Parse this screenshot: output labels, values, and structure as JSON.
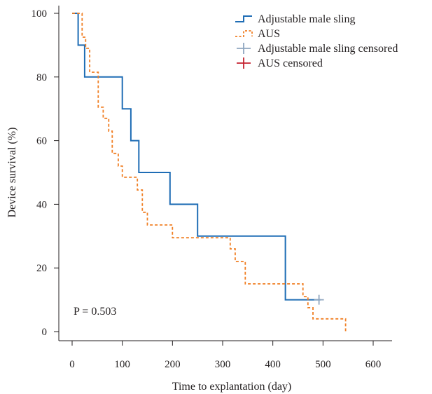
{
  "chart_data": {
    "type": "line",
    "title": "",
    "xlabel": "Time to explantation (day)",
    "ylabel": "Device survival (%)",
    "xlim": [
      0,
      600
    ],
    "ylim": [
      0,
      100
    ],
    "x_ticks": [
      0,
      100,
      200,
      300,
      400,
      500,
      600
    ],
    "y_ticks": [
      0,
      20,
      40,
      60,
      80,
      100
    ],
    "x_tick_labels": [
      "0",
      "100",
      "200",
      "300",
      "400",
      "500",
      "600"
    ],
    "y_tick_labels": [
      "0",
      "20",
      "40",
      "60",
      "80",
      "100"
    ],
    "grid": false,
    "legend_position": "top-right",
    "annotation": "P = 0.503",
    "series": [
      {
        "name": "Adjustable male sling",
        "color": "#1f6db5",
        "style": "solid",
        "step": true,
        "x": [
          0,
          12,
          12,
          25,
          25,
          100,
          100,
          117,
          117,
          133,
          133,
          195,
          195,
          250,
          250,
          425,
          425,
          495
        ],
        "y": [
          100,
          100,
          90,
          90,
          80,
          80,
          70,
          70,
          60,
          60,
          50,
          50,
          40,
          40,
          30,
          30,
          10,
          10
        ]
      },
      {
        "name": "AUS",
        "color": "#f07f24",
        "style": "dashed",
        "step": true,
        "x": [
          0,
          20,
          20,
          27,
          27,
          35,
          35,
          52,
          52,
          62,
          62,
          73,
          73,
          80,
          80,
          92,
          92,
          100,
          100,
          130,
          130,
          140,
          140,
          150,
          150,
          200,
          200,
          315,
          315,
          325,
          325,
          345,
          345,
          460,
          460,
          470,
          470,
          480,
          480,
          545,
          545
        ],
        "y": [
          100,
          100,
          92.5,
          92.5,
          89,
          89,
          81.5,
          81.5,
          70.5,
          70.5,
          67,
          67,
          63,
          63,
          56,
          56,
          52,
          52,
          48.5,
          48.5,
          44.5,
          44.5,
          37.5,
          37.5,
          33.5,
          33.5,
          29.5,
          29.5,
          26,
          26,
          22,
          22,
          15,
          15,
          11,
          11,
          7.5,
          7.5,
          4,
          4,
          0
        ]
      }
    ],
    "censored": [
      {
        "name": "Adjustable male sling censored",
        "color": "#8fa6bf",
        "x": [
          492
        ],
        "y": [
          10
        ]
      },
      {
        "name": "AUS censored",
        "color": "#c4212f",
        "x": [],
        "y": []
      }
    ]
  },
  "legend": [
    {
      "label": "Adjustable male sling",
      "color": "#1f6db5",
      "kind": "line-solid"
    },
    {
      "label": "AUS",
      "color": "#f07f24",
      "kind": "line-dashed"
    },
    {
      "label": "Adjustable male sling censored",
      "color": "#8fa6bf",
      "kind": "plus"
    },
    {
      "label": "AUS censored",
      "color": "#c4212f",
      "kind": "plus"
    }
  ]
}
